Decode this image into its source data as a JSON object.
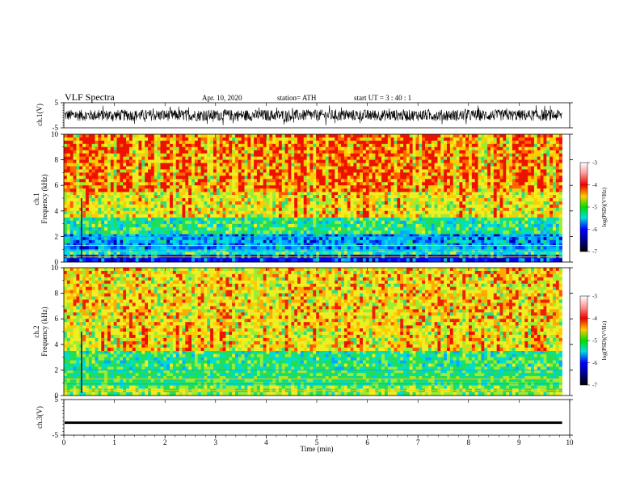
{
  "header": {
    "title": "VLF  Spectra",
    "date": "Apr. 10, 2020",
    "station": "station= ATH",
    "start": "start  UT  =   3  : 40 : 1"
  },
  "chart_data": [
    {
      "type": "line",
      "name": "ch1-waveform",
      "ylabel": "ch.1(V)",
      "xlim": [
        0,
        10
      ],
      "ylim": [
        -5,
        5
      ],
      "yticks": [
        "5",
        "-5"
      ],
      "trace_range": [
        -2.5,
        2.5
      ]
    },
    {
      "type": "heatmap",
      "name": "ch1-spectrogram",
      "ylabel_line1": "ch.1",
      "ylabel_line2": "Frequency  (kHz)",
      "xlim": [
        0,
        10
      ],
      "ylim": [
        0,
        10
      ],
      "yticks": [
        "0",
        "2",
        "4",
        "6",
        "8",
        "10"
      ],
      "colorbar": {
        "label": "log(PSD)(V²/Hz)",
        "ticks": [
          "-3",
          "-4",
          "-5",
          "-6",
          "-7"
        ],
        "range": [
          -7,
          -3
        ]
      },
      "bands": [
        {
          "from_khz": 0.0,
          "to_khz": 0.6,
          "level": "blue"
        },
        {
          "from_khz": 0.6,
          "to_khz": 1.0,
          "level": "cyan"
        },
        {
          "from_khz": 1.0,
          "to_khz": 2.2,
          "level": "blue-cyan"
        },
        {
          "from_khz": 2.2,
          "to_khz": 3.5,
          "level": "green-cyan"
        },
        {
          "from_khz": 3.5,
          "to_khz": 5.5,
          "level": "yellow"
        },
        {
          "from_khz": 5.5,
          "to_khz": 10.0,
          "level": "red-orange"
        }
      ]
    },
    {
      "type": "heatmap",
      "name": "ch2-spectrogram",
      "ylabel_line1": "ch.2",
      "ylabel_line2": "Frequency  (kHz)",
      "xlim": [
        0,
        10
      ],
      "ylim": [
        0,
        10
      ],
      "yticks": [
        "0",
        "2",
        "4",
        "6",
        "8",
        "10"
      ],
      "colorbar": {
        "label": "log(PSD)(V²/Hz)",
        "ticks": [
          "-3",
          "-4",
          "-5",
          "-6",
          "-7"
        ],
        "range": [
          -7,
          -3
        ]
      },
      "bands": [
        {
          "from_khz": 0.0,
          "to_khz": 0.8,
          "level": "green-yellow"
        },
        {
          "from_khz": 0.8,
          "to_khz": 2.0,
          "level": "green"
        },
        {
          "from_khz": 2.0,
          "to_khz": 3.5,
          "level": "green-cyan"
        },
        {
          "from_khz": 3.5,
          "to_khz": 5.5,
          "level": "yellow"
        },
        {
          "from_khz": 5.5,
          "to_khz": 10.0,
          "level": "yellow-orange"
        }
      ]
    },
    {
      "type": "line",
      "name": "ch3-waveform",
      "ylabel": "ch.3(V)",
      "xlim": [
        0,
        10
      ],
      "ylim": [
        -5,
        5
      ],
      "yticks": [
        "5",
        "-5"
      ],
      "trace_value": -1.5
    }
  ],
  "xaxis": {
    "label": "Time  (min)",
    "ticks": [
      "0",
      "1",
      "2",
      "3",
      "4",
      "5",
      "6",
      "7",
      "8",
      "9",
      "10"
    ],
    "range": [
      0,
      10
    ],
    "data_end_min": 9.85
  }
}
